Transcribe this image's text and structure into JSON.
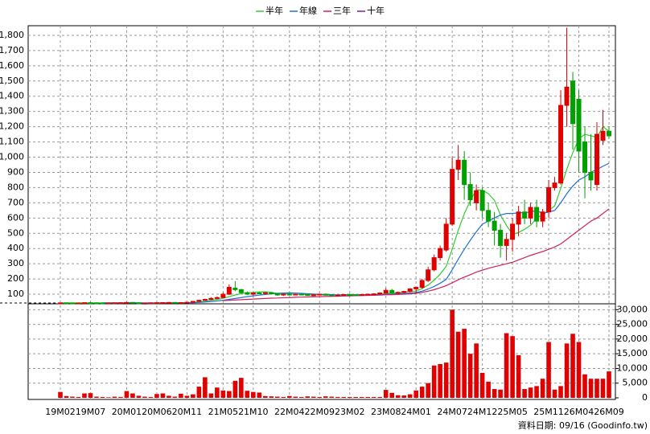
{
  "chart_data": {
    "type": "candlestick",
    "ylim": [
      37,
      1863
    ],
    "yticks": [
      100,
      200,
      300,
      400,
      500,
      600,
      700,
      800,
      900,
      {
        "value": 1000,
        "label": "1,000"
      },
      {
        "value": 1100,
        "label": "1,100"
      },
      {
        "value": 1200,
        "label": "1,200"
      },
      {
        "value": 1300,
        "label": "1,300"
      },
      {
        "value": 1400,
        "label": "1,400"
      },
      {
        "value": 1500,
        "label": "1,500"
      },
      {
        "value": 1600,
        "label": "1,600"
      },
      {
        "value": 1700,
        "label": "1,700"
      },
      {
        "value": 1800,
        "label": "1,800"
      }
    ],
    "y2lim": [
      0,
      32000
    ],
    "y2ticks": [
      0,
      {
        "value": 5000,
        "label": "5,000"
      },
      {
        "value": 10000,
        "label": "10,000"
      },
      {
        "value": 15000,
        "label": "15,000"
      },
      {
        "value": 20000,
        "label": "20,000"
      },
      {
        "value": 25000,
        "label": "25,000"
      },
      {
        "value": 30000,
        "label": "30,000"
      }
    ],
    "grid": true,
    "up_color": "#e00000",
    "down_color": "#00a000",
    "volume_color": "#e00000",
    "categories": [
      "19M02",
      null,
      null,
      null,
      null,
      "19M07",
      null,
      null,
      null,
      null,
      null,
      "20M01",
      null,
      null,
      null,
      null,
      "20M06",
      null,
      null,
      null,
      null,
      "20M11",
      null,
      null,
      null,
      null,
      null,
      "21M05",
      null,
      null,
      null,
      null,
      "21M10",
      null,
      null,
      null,
      null,
      null,
      "22M04",
      null,
      null,
      null,
      null,
      "22M09",
      null,
      null,
      null,
      null,
      "23M02",
      null,
      null,
      null,
      null,
      null,
      "23M08",
      null,
      null,
      null,
      null,
      "24M01",
      null,
      null,
      null,
      null,
      null,
      "24M07",
      null,
      null,
      null,
      null,
      "24M12",
      null,
      null,
      null,
      null,
      "25M05",
      null,
      null,
      null,
      null,
      null,
      "25M11",
      null,
      null,
      null,
      null,
      "26M04",
      null,
      null,
      null,
      null,
      "26M09"
    ],
    "ohlc": [
      [
        42,
        44,
        40,
        43
      ],
      [
        43,
        45,
        41,
        42
      ],
      [
        42,
        44,
        40,
        41
      ],
      [
        41,
        43,
        39,
        42
      ],
      [
        42,
        45,
        41,
        44
      ],
      [
        44,
        46,
        42,
        43
      ],
      [
        43,
        45,
        41,
        42
      ],
      [
        42,
        44,
        40,
        41
      ],
      [
        41,
        43,
        39,
        42
      ],
      [
        42,
        44,
        40,
        43
      ],
      [
        43,
        45,
        42,
        44
      ],
      [
        44,
        47,
        43,
        46
      ],
      [
        46,
        48,
        42,
        43
      ],
      [
        43,
        44,
        36,
        38
      ],
      [
        38,
        42,
        34,
        41
      ],
      [
        41,
        44,
        40,
        43
      ],
      [
        43,
        45,
        41,
        44
      ],
      [
        44,
        46,
        42,
        45
      ],
      [
        45,
        48,
        43,
        46
      ],
      [
        46,
        47,
        43,
        44
      ],
      [
        44,
        46,
        42,
        45
      ],
      [
        45,
        48,
        44,
        47
      ],
      [
        47,
        55,
        46,
        53
      ],
      [
        53,
        62,
        52,
        60
      ],
      [
        60,
        70,
        58,
        66
      ],
      [
        66,
        80,
        62,
        72
      ],
      [
        72,
        85,
        68,
        78
      ],
      [
        78,
        110,
        74,
        100
      ],
      [
        100,
        165,
        95,
        145
      ],
      [
        140,
        185,
        120,
        130
      ],
      [
        130,
        135,
        105,
        110
      ],
      [
        110,
        118,
        95,
        100
      ],
      [
        100,
        112,
        92,
        108
      ],
      [
        108,
        115,
        100,
        104
      ],
      [
        104,
        112,
        98,
        110
      ],
      [
        110,
        114,
        100,
        102
      ],
      [
        102,
        108,
        90,
        95
      ],
      [
        95,
        104,
        88,
        100
      ],
      [
        100,
        106,
        94,
        98
      ],
      [
        98,
        104,
        94,
        100
      ],
      [
        100,
        106,
        96,
        97
      ],
      [
        97,
        102,
        90,
        92
      ],
      [
        92,
        98,
        88,
        96
      ],
      [
        96,
        104,
        94,
        100
      ],
      [
        100,
        105,
        92,
        94
      ],
      [
        94,
        98,
        86,
        90
      ],
      [
        90,
        96,
        85,
        94
      ],
      [
        94,
        100,
        90,
        98
      ],
      [
        98,
        104,
        94,
        96
      ],
      [
        96,
        100,
        92,
        95
      ],
      [
        95,
        100,
        90,
        98
      ],
      [
        98,
        104,
        95,
        100
      ],
      [
        100,
        106,
        96,
        102
      ],
      [
        102,
        112,
        98,
        108
      ],
      [
        108,
        140,
        104,
        125
      ],
      [
        125,
        135,
        100,
        110
      ],
      [
        110,
        118,
        100,
        112
      ],
      [
        112,
        122,
        105,
        118
      ],
      [
        118,
        140,
        112,
        135
      ],
      [
        135,
        150,
        105,
        145
      ],
      [
        145,
        200,
        135,
        190
      ],
      [
        190,
        280,
        180,
        260
      ],
      [
        260,
        360,
        250,
        340
      ],
      [
        340,
        420,
        320,
        400
      ],
      [
        390,
        600,
        380,
        560
      ],
      [
        560,
        1000,
        550,
        920
      ],
      [
        920,
        1080,
        850,
        980
      ],
      [
        980,
        1040,
        720,
        820
      ],
      [
        820,
        900,
        680,
        720
      ],
      [
        700,
        820,
        650,
        780
      ],
      [
        780,
        800,
        600,
        650
      ],
      [
        650,
        700,
        540,
        580
      ],
      [
        580,
        640,
        420,
        520
      ],
      [
        520,
        560,
        340,
        420
      ],
      [
        420,
        500,
        320,
        460
      ],
      [
        460,
        600,
        380,
        560
      ],
      [
        560,
        680,
        480,
        640
      ],
      [
        640,
        720,
        560,
        600
      ],
      [
        600,
        700,
        560,
        670
      ],
      [
        670,
        720,
        540,
        580
      ],
      [
        580,
        660,
        540,
        640
      ],
      [
        640,
        850,
        600,
        800
      ],
      [
        800,
        870,
        780,
        830
      ],
      [
        830,
        1440,
        820,
        1340
      ],
      [
        1340,
        1850,
        1200,
        1460
      ],
      [
        1500,
        1560,
        1050,
        1220
      ],
      [
        1380,
        1440,
        900,
        1040
      ],
      [
        1100,
        1200,
        730,
        900
      ],
      [
        900,
        1150,
        780,
        850
      ],
      [
        820,
        1230,
        780,
        1150
      ],
      [
        1110,
        1310,
        1080,
        1170
      ],
      [
        1170,
        1200,
        1120,
        1140
      ]
    ],
    "volume": [
      2000,
      600,
      400,
      300,
      1500,
      1600,
      400,
      300,
      200,
      400,
      300,
      2300,
      1500,
      700,
      400,
      300,
      1300,
      1500,
      700,
      400,
      1400,
      700,
      1200,
      3800,
      7000,
      1500,
      3500,
      2500,
      2300,
      5800,
      6800,
      2400,
      2000,
      1800,
      600,
      500,
      400,
      300,
      600,
      400,
      300,
      500,
      400,
      300,
      500,
      400,
      300,
      300,
      300,
      300,
      300,
      300,
      300,
      300,
      2700,
      1700,
      900,
      800,
      1200,
      2500,
      3800,
      5000,
      11000,
      11500,
      12000,
      30000,
      22500,
      23500,
      15000,
      18500,
      8500,
      5500,
      3000,
      2800,
      22000,
      21000,
      14500,
      3000,
      3500,
      4000,
      6500,
      19000,
      2800,
      4000,
      18500,
      21800,
      19000,
      8000,
      6500,
      6500,
      6500,
      9000
    ],
    "series": [
      {
        "name": "半年",
        "color": "#33cc33",
        "values": [
          43,
          43,
          43,
          43,
          43,
          43,
          43,
          43,
          43,
          43,
          43,
          43,
          44,
          43,
          42,
          41,
          41,
          42,
          43,
          43,
          44,
          44,
          45,
          49,
          54,
          60,
          66,
          73,
          84,
          95,
          104,
          110,
          112,
          115,
          116,
          112,
          105,
          103,
          102,
          100,
          99,
          97,
          96,
          96,
          95,
          94,
          94,
          95,
          95,
          95,
          95,
          96,
          98,
          100,
          104,
          108,
          110,
          113,
          119,
          121,
          137,
          160,
          192,
          232,
          283,
          397,
          520,
          628,
          714,
          786,
          783,
          760,
          717,
          620,
          552,
          493,
          505,
          526,
          553,
          600,
          622,
          650,
          680,
          795,
          920,
          1030,
          1120,
          1150,
          1140,
          1130,
          1200,
          1170
        ]
      },
      {
        "name": "年線",
        "color": "#1f6fd6",
        "values": [
          null,
          null,
          null,
          null,
          null,
          null,
          null,
          43,
          43,
          43,
          43,
          43,
          43,
          43,
          43,
          43,
          43,
          43,
          43,
          43,
          43,
          44,
          44,
          46,
          49,
          52,
          56,
          60,
          66,
          72,
          78,
          84,
          89,
          94,
          98,
          103,
          106,
          108,
          109,
          108,
          106,
          103,
          101,
          99,
          98,
          97,
          96,
          96,
          96,
          96,
          96,
          97,
          97,
          98,
          100,
          101,
          103,
          105,
          108,
          111,
          120,
          134,
          151,
          172,
          197,
          260,
          330,
          395,
          455,
          510,
          560,
          580,
          600,
          620,
          630,
          630,
          635,
          635,
          640,
          650,
          630,
          640,
          650,
          700,
          760,
          810,
          850,
          870,
          900,
          920,
          940,
          960
        ]
      },
      {
        "name": "三年",
        "color": "#d0205a",
        "values": [
          null,
          null,
          null,
          null,
          null,
          null,
          null,
          null,
          null,
          null,
          null,
          null,
          null,
          null,
          null,
          null,
          null,
          null,
          null,
          null,
          null,
          null,
          null,
          null,
          null,
          null,
          null,
          58,
          60,
          62,
          64,
          66,
          68,
          70,
          72,
          74,
          75,
          77,
          78,
          80,
          81,
          82,
          83,
          84,
          85,
          86,
          87,
          88,
          89,
          90,
          91,
          92,
          93,
          94,
          96,
          97,
          98,
          100,
          102,
          106,
          112,
          120,
          130,
          142,
          156,
          175,
          195,
          212,
          228,
          245,
          258,
          270,
          280,
          290,
          300,
          310,
          325,
          340,
          355,
          368,
          380,
          395,
          410,
          430,
          460,
          490,
          520,
          550,
          580,
          600,
          630,
          660
        ]
      },
      {
        "name": "十年",
        "color": "#7a1fa2",
        "values": [
          null,
          null,
          null,
          null,
          null,
          null,
          null,
          null,
          null,
          null,
          null,
          null,
          null,
          null,
          null,
          null,
          null,
          null,
          null,
          null,
          null,
          null,
          null,
          null,
          null,
          null,
          null,
          null,
          null,
          null,
          null,
          null,
          null,
          null,
          null,
          null,
          null,
          null,
          null,
          null,
          null,
          null,
          null,
          null,
          null,
          null,
          null,
          null,
          null,
          null,
          null,
          null,
          null,
          null,
          null,
          null,
          null,
          null,
          null,
          null,
          null,
          null,
          null,
          null,
          null,
          null,
          null,
          null,
          null,
          null,
          null,
          null,
          null,
          null,
          null,
          null,
          null,
          null,
          null,
          null,
          null,
          null,
          null,
          null,
          null,
          null,
          null,
          null,
          null,
          null,
          null,
          null
        ]
      }
    ],
    "footer": "資料日期: 09/16 (Goodinfo.tw)"
  }
}
